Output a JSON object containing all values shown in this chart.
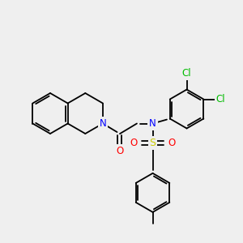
{
  "background_color": "#efefef",
  "bond_color": "#000000",
  "atom_colors": {
    "N": "#0000ff",
    "O": "#ff0000",
    "S": "#cccc00",
    "Cl": "#00bb00",
    "C": "#000000"
  },
  "fig_size": [
    3.0,
    3.0
  ],
  "dpi": 100
}
